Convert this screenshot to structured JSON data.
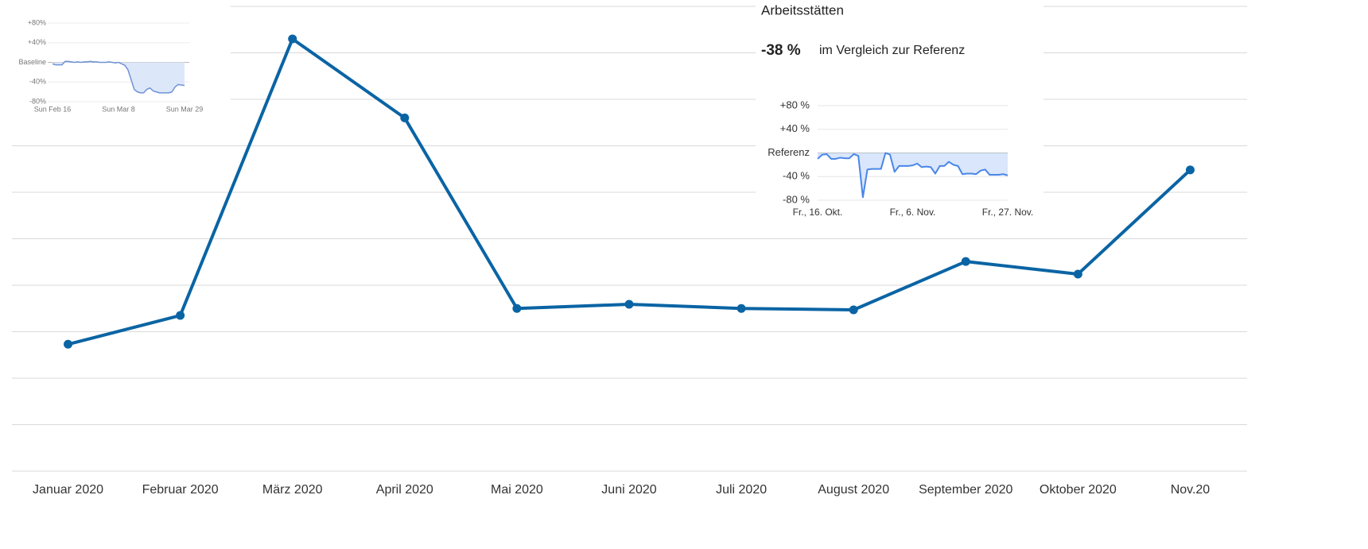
{
  "chart_data": [
    {
      "type": "line",
      "categories": [
        "Januar 2020",
        "Februar 2020",
        "März 2020",
        "April 2020",
        "Mai 2020",
        "Juni 2020",
        "Juli 2020",
        "August 2020",
        "September 2020",
        "Oktober 2020",
        "Nov.20"
      ],
      "values": [
        2.73,
        3.35,
        9.3,
        7.6,
        3.5,
        3.59,
        3.5,
        3.47,
        4.51,
        4.24,
        6.48
      ],
      "color": "#0a64a4",
      "markers": true,
      "ylim": [
        0,
        10
      ],
      "yticks": [
        0,
        1,
        2,
        3,
        4,
        5,
        6,
        7,
        8,
        9,
        10
      ],
      "tick_labels": false,
      "grid": true
    },
    {
      "type": "area",
      "categories": [
        "Sun Feb 16",
        null,
        null,
        null,
        null,
        null,
        null,
        null,
        null,
        null,
        null,
        null,
        null,
        null,
        null,
        null,
        null,
        null,
        null,
        null,
        null,
        "Sun Mar 8",
        null,
        null,
        null,
        null,
        null,
        null,
        null,
        null,
        null,
        null,
        null,
        null,
        null,
        null,
        null,
        null,
        null,
        null,
        null,
        null,
        "Sun Mar 29"
      ],
      "values": [
        -3,
        -5,
        -5,
        -5,
        2,
        2,
        1,
        0,
        1,
        0,
        1,
        1,
        2,
        1,
        1,
        0,
        0,
        0,
        1,
        0,
        -1,
        0,
        -3,
        -6,
        -15,
        -35,
        -55,
        -60,
        -62,
        -62,
        -55,
        -52,
        -58,
        -60,
        -62,
        -62,
        -62,
        -62,
        -60,
        -50,
        -45,
        -46,
        -47
      ],
      "color": "#6f93d6",
      "fill": "#dde7fa",
      "ylim": [
        -80,
        80
      ],
      "yticks": [
        {
          "value": 80,
          "label": "+80%"
        },
        {
          "value": 40,
          "label": "+40%"
        },
        {
          "value": 0,
          "label": "Baseline"
        },
        {
          "value": -40,
          "label": "-40%"
        },
        {
          "value": -80,
          "label": "-80%"
        }
      ],
      "grid": true
    },
    {
      "type": "area",
      "title": "Arbeitsstätten",
      "headline": "-38 %",
      "subtitle": "im Vergleich zur Referenz",
      "categories": [
        "Fr., 16. Okt.",
        null,
        null,
        null,
        null,
        null,
        null,
        null,
        null,
        null,
        null,
        null,
        null,
        null,
        null,
        null,
        null,
        null,
        null,
        null,
        null,
        "Fr., 6. Nov.",
        null,
        null,
        null,
        null,
        null,
        null,
        null,
        null,
        null,
        null,
        null,
        null,
        null,
        null,
        null,
        null,
        null,
        null,
        null,
        null,
        "Fr., 27. Nov."
      ],
      "values": [
        -10,
        -3,
        -2,
        -10,
        -10,
        -8,
        -9,
        -9,
        -2,
        -5,
        -75,
        -28,
        -27,
        -27,
        -27,
        0,
        -3,
        -32,
        -22,
        -22,
        -22,
        -21,
        -18,
        -24,
        -23,
        -24,
        -35,
        -22,
        -22,
        -15,
        -20,
        -22,
        -36,
        -35,
        -35,
        -36,
        -30,
        -28,
        -37,
        -37,
        -37,
        -36,
        -38
      ],
      "color": "#4a86e8",
      "fill": "#d9e6fb",
      "ylim": [
        -80,
        80
      ],
      "yticks": [
        {
          "value": 80,
          "label": "+80 %"
        },
        {
          "value": 40,
          "label": "+40 %"
        },
        {
          "value": 0,
          "label": "Referenz"
        },
        {
          "value": -40,
          "label": "-40 %"
        },
        {
          "value": -80,
          "label": "-80 %"
        }
      ],
      "grid": true
    }
  ]
}
